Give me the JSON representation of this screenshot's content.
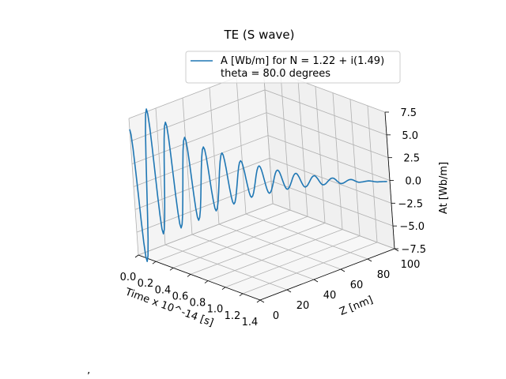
{
  "chart_data": {
    "type": "line",
    "projection": "3d",
    "title": "TE (S wave)",
    "xlabel": "Time x 10^-14 [s]",
    "ylabel": "Z [nm]",
    "zlabel": "At [Wb/m]",
    "xlim": [
      0.0,
      1.4
    ],
    "ylim": [
      0,
      100
    ],
    "zlim": [
      -7.5,
      7.5
    ],
    "x_tick_labels": [
      "0.0",
      "0.2",
      "0.4",
      "0.6",
      "0.8",
      "1.0",
      "1.2",
      "1.4"
    ],
    "y_tick_labels": [
      "0",
      "20",
      "40",
      "60",
      "80",
      "100"
    ],
    "z_tick_labels": [
      "7.5",
      "5.0",
      "2.5",
      "0.0",
      "−2.5",
      "−5.0",
      "−7.5"
    ],
    "grid": true,
    "legend_position": "upper-right",
    "series": [
      {
        "name": "A [Wb/m] for N = 1.22 + i(1.49)\ntheta = 80.0 degrees",
        "color": "#1f77b4",
        "x": [
          0.0,
          0.05,
          0.1,
          0.15,
          0.2,
          0.25,
          0.3,
          0.35,
          0.4,
          0.45,
          0.5,
          0.55,
          0.6,
          0.65,
          0.7,
          0.75,
          0.8,
          0.85,
          0.9,
          0.95,
          1.0,
          1.05,
          1.1,
          1.15,
          1.2,
          1.25,
          1.3,
          1.35,
          1.4
        ],
        "z_approx": [
          6.3,
          -8.2,
          8.5,
          -5.2,
          7.0,
          -4.6,
          5.3,
          -3.8,
          4.2,
          -2.8,
          3.5,
          -2.1,
          2.6,
          -1.4,
          2.0,
          -1.0,
          1.5,
          -0.6,
          1.1,
          -0.4,
          0.8,
          -0.2,
          0.5,
          -0.1,
          0.3,
          0.0,
          0.1,
          0.0,
          0.0
        ],
        "y_approx": [
          0,
          3,
          7,
          10,
          14,
          17,
          21,
          24,
          28,
          31,
          35,
          38,
          42,
          45,
          49,
          52,
          56,
          59,
          63,
          66,
          70,
          73,
          77,
          80,
          84,
          87,
          91,
          94,
          98
        ]
      }
    ]
  },
  "caption_mark": "’"
}
